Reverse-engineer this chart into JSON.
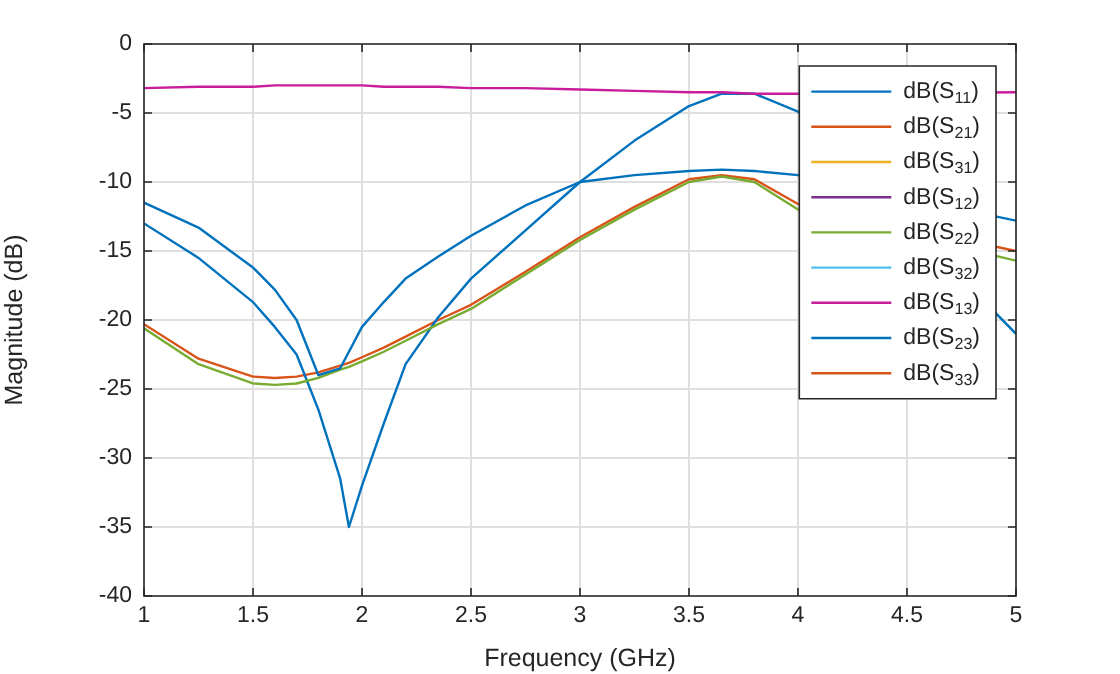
{
  "chart_data": {
    "type": "line",
    "xlabel": "Frequency (GHz)",
    "ylabel": "Magnitude (dB)",
    "x": [
      1,
      1.25,
      1.5,
      1.6,
      1.7,
      1.8,
      1.9,
      1.94,
      2,
      2.1,
      2.2,
      2.35,
      2.5,
      2.75,
      3,
      3.25,
      3.5,
      3.65,
      3.8,
      4,
      4.25,
      4.5,
      4.75,
      5
    ],
    "xlim": [
      1,
      5
    ],
    "xticks": [
      1,
      1.5,
      2,
      2.5,
      3,
      3.5,
      4,
      4.5,
      5
    ],
    "ylim": [
      -40,
      0
    ],
    "yticks": [
      -40,
      -35,
      -30,
      -25,
      -20,
      -15,
      -10,
      -5,
      0
    ],
    "grid": true,
    "legend": "top right",
    "marker": "none",
    "line_style": "solid",
    "series": [
      {
        "name": "dB(S$_{11}$)",
        "color": "#0072bd",
        "values": [
          -11.5,
          -13.3,
          -16.2,
          -17.8,
          -20,
          -24,
          -23.5,
          -22.3,
          -20.5,
          -18.7,
          -17,
          -15.4,
          -13.9,
          -11.7,
          -10,
          -9.5,
          -9.2,
          -9.1,
          -9.2,
          -9.5,
          null,
          null,
          null,
          -12.8
        ]
      },
      {
        "name": "dB(S$_{21}$)",
        "color": "#d95319",
        "values": [
          null,
          null,
          null,
          null,
          null,
          null,
          null,
          null,
          null,
          null,
          null,
          null,
          null,
          null,
          null,
          null,
          null,
          null,
          null,
          null,
          null,
          null,
          null,
          null
        ]
      },
      {
        "name": "dB(S$_{31}$)",
        "color": "#edb120",
        "values": [
          null,
          null,
          null,
          null,
          null,
          null,
          null,
          null,
          null,
          null,
          null,
          null,
          null,
          null,
          null,
          null,
          null,
          null,
          null,
          null,
          null,
          null,
          null,
          null
        ]
      },
      {
        "name": "dB(S$_{12}$)",
        "color": "#7e2f8e",
        "values": [
          null,
          null,
          null,
          null,
          null,
          null,
          null,
          null,
          null,
          null,
          null,
          null,
          null,
          null,
          null,
          null,
          null,
          null,
          null,
          null,
          null,
          null,
          null,
          null
        ]
      },
      {
        "name": "dB(S$_{22}$)",
        "color": "#77ac30",
        "values": [
          -20.6,
          -23.2,
          -24.6,
          -24.7,
          -24.6,
          -24.2,
          -23.6,
          -23.4,
          -23,
          -22.3,
          -21.5,
          -20.3,
          -19.2,
          -16.7,
          -14.2,
          -12,
          -10,
          -9.6,
          -10,
          -12,
          null,
          null,
          null,
          -15.7
        ]
      },
      {
        "name": "dB(S$_{32}$)",
        "color": "#4dbeee",
        "values": [
          null,
          null,
          null,
          null,
          null,
          null,
          null,
          null,
          null,
          null,
          null,
          null,
          null,
          null,
          null,
          null,
          null,
          null,
          null,
          null,
          null,
          null,
          null,
          null
        ]
      },
      {
        "name": "dB(S$_{13}$)",
        "color": "#c81c9b",
        "values": [
          -3.2,
          -3.1,
          -3.1,
          -3.0,
          -3.0,
          -3.0,
          -3.0,
          -3.0,
          -3.0,
          -3.1,
          -3.1,
          -3.1,
          -3.2,
          -3.2,
          -3.3,
          -3.4,
          -3.5,
          -3.5,
          -3.6,
          -3.6,
          null,
          null,
          null,
          -3.5
        ]
      },
      {
        "name": "dB(S$_{23}$)",
        "color": "#0072bd",
        "values": [
          -13,
          -15.5,
          -18.7,
          -20.5,
          -22.5,
          -26.5,
          -31.5,
          -35,
          -32,
          -27.5,
          -23.2,
          -19.8,
          -17,
          -13.5,
          -10,
          -7,
          -4.5,
          -3.6,
          -3.6,
          -4.9,
          null,
          null,
          null,
          -21
        ]
      },
      {
        "name": "dB(S$_{33}$)",
        "color": "#d95319",
        "values": [
          -20.3,
          -22.8,
          -24.1,
          -24.2,
          -24.1,
          -23.8,
          -23.3,
          -23.1,
          -22.7,
          -22,
          -21.2,
          -20,
          -18.9,
          -16.5,
          -14,
          -11.8,
          -9.8,
          -9.5,
          -9.8,
          -11.6,
          null,
          null,
          null,
          -15
        ]
      }
    ]
  }
}
